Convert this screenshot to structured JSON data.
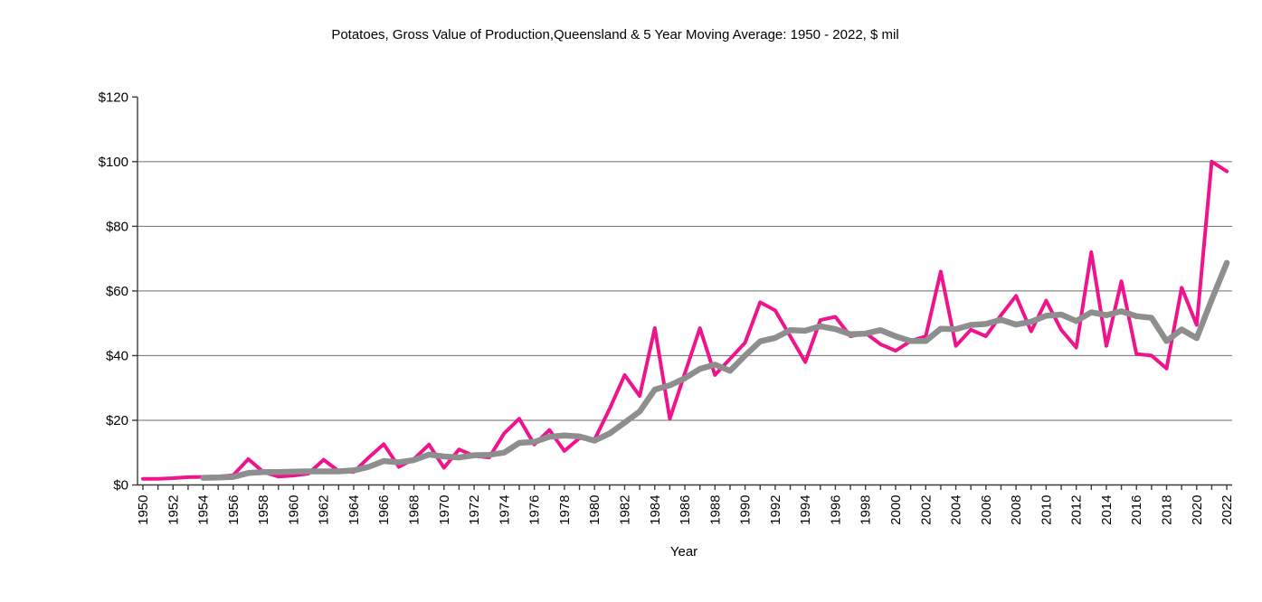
{
  "title": "Potatoes, Gross Value of Production,Queensland & 5 Year Moving Average: 1950 - 2022, $ mil",
  "chart_data": {
    "type": "line",
    "title": "Potatoes, Gross Value of Production,Queensland & 5 Year Moving Average: 1950 - 2022, $ mil",
    "xlabel": "Year",
    "ylabel": "",
    "ylim": [
      0,
      120
    ],
    "grid": true,
    "legend": "none",
    "y_ticks": [
      {
        "value": 0,
        "label": "$0"
      },
      {
        "value": 20,
        "label": "$20"
      },
      {
        "value": 40,
        "label": "$40"
      },
      {
        "value": 60,
        "label": "$60"
      },
      {
        "value": 80,
        "label": "$80"
      },
      {
        "value": 100,
        "label": "$100"
      },
      {
        "value": 120,
        "label": "$120"
      }
    ],
    "x_tick_labels": [
      1950,
      1952,
      1954,
      1956,
      1958,
      1960,
      1962,
      1964,
      1966,
      1968,
      1970,
      1972,
      1974,
      1976,
      1978,
      1980,
      1982,
      1984,
      1986,
      1988,
      1990,
      1992,
      1994,
      1996,
      1998,
      2000,
      2002,
      2004,
      2006,
      2008,
      2010,
      2012,
      2014,
      2016,
      2018,
      2020,
      2022
    ],
    "x": [
      1950,
      1951,
      1952,
      1953,
      1954,
      1955,
      1956,
      1957,
      1958,
      1959,
      1960,
      1961,
      1962,
      1963,
      1964,
      1965,
      1966,
      1967,
      1968,
      1969,
      1970,
      1971,
      1972,
      1973,
      1974,
      1975,
      1976,
      1977,
      1978,
      1979,
      1980,
      1981,
      1982,
      1983,
      1984,
      1985,
      1986,
      1987,
      1988,
      1989,
      1990,
      1991,
      1992,
      1993,
      1994,
      1995,
      1996,
      1997,
      1998,
      1999,
      2000,
      2001,
      2002,
      2003,
      2004,
      2005,
      2006,
      2007,
      2008,
      2009,
      2010,
      2011,
      2012,
      2013,
      2014,
      2015,
      2016,
      2017,
      2018,
      2019,
      2020,
      2021,
      2022
    ],
    "series": [
      {
        "name": "Gross Value of Production",
        "color": "#F0148C",
        "stroke_width": 4,
        "values": [
          1.9,
          1.9,
          2.1,
          2.4,
          2.5,
          2.6,
          3.0,
          8.0,
          4.0,
          2.6,
          2.9,
          3.5,
          7.8,
          4.3,
          4.0,
          8.5,
          12.6,
          5.6,
          8.0,
          12.5,
          5.3,
          11.0,
          9.0,
          8.5,
          16.0,
          20.5,
          12.5,
          17.0,
          10.5,
          14.5,
          14.0,
          23.5,
          34.0,
          27.5,
          48.5,
          20.5,
          34.5,
          48.5,
          34.0,
          39.0,
          44.0,
          56.5,
          54.0,
          46.0,
          38.0,
          51.0,
          52.0,
          46.0,
          47.0,
          43.5,
          41.5,
          44.5,
          46.0,
          66.0,
          43.0,
          48.0,
          46.0,
          52.5,
          58.5,
          47.5,
          57.0,
          48.0,
          42.5,
          72.0,
          43.0,
          63.0,
          40.5,
          40.0,
          36.0,
          61.0,
          49.5,
          100.0,
          97.0
        ]
      },
      {
        "name": "5 Year Moving Average",
        "color": "#8E8E8E",
        "stroke_width": 6.5,
        "values": [
          null,
          null,
          null,
          null,
          2.2,
          2.3,
          2.5,
          3.7,
          4.0,
          4.0,
          4.1,
          4.2,
          4.2,
          4.2,
          4.5,
          5.6,
          7.4,
          7.0,
          7.7,
          9.4,
          8.8,
          8.5,
          9.2,
          9.3,
          10.0,
          13.0,
          13.3,
          14.9,
          15.3,
          15.0,
          13.7,
          15.9,
          19.3,
          22.7,
          29.5,
          30.8,
          33.0,
          35.9,
          37.2,
          35.3,
          40.0,
          44.4,
          45.5,
          47.9,
          47.7,
          49.1,
          48.2,
          46.6,
          46.8,
          47.9,
          46.0,
          44.5,
          44.5,
          48.3,
          48.2,
          49.5,
          49.8,
          51.1,
          49.6,
          50.5,
          52.3,
          52.7,
          50.7,
          53.4,
          52.5,
          53.7,
          52.2,
          51.7,
          44.5,
          48.1,
          45.4,
          57.3,
          68.7
        ]
      }
    ]
  },
  "colors": {
    "background": "#ffffff",
    "gridline": "#6E6E6E",
    "axis": "#3C3C3C",
    "text": "#000000",
    "series_gvp": "#F0148C",
    "series_ma": "#8E8E8E"
  }
}
